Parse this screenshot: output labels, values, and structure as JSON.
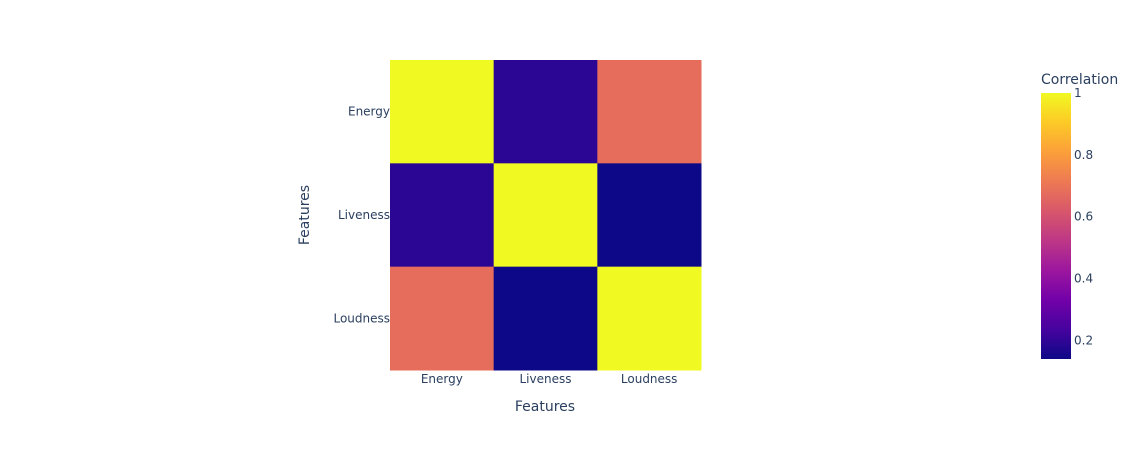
{
  "chart_data": {
    "type": "heatmap",
    "title": "",
    "xlabel": "Features",
    "ylabel": "Features",
    "x": [
      "Energy",
      "Liveness",
      "Loudness"
    ],
    "y": [
      "Energy",
      "Liveness",
      "Loudness"
    ],
    "z": [
      [
        1.0,
        0.19,
        0.68
      ],
      [
        0.19,
        1.0,
        0.14
      ],
      [
        0.68,
        0.14,
        1.0
      ]
    ],
    "colorbar": {
      "title": "Correlation",
      "min": 0.14,
      "max": 1.0,
      "ticks": [
        0.2,
        0.4,
        0.6,
        0.8,
        1
      ],
      "tick_labels": [
        "0.2",
        "0.4",
        "0.6",
        "0.8",
        "1"
      ]
    },
    "colorscale": "plasma",
    "colorscale_stops": [
      "#0d0887",
      "#46039f",
      "#7201a8",
      "#9c179e",
      "#bd3786",
      "#d8576b",
      "#ed7953",
      "#fb9f3a",
      "#fdca26",
      "#f0f921"
    ],
    "grid": false
  }
}
